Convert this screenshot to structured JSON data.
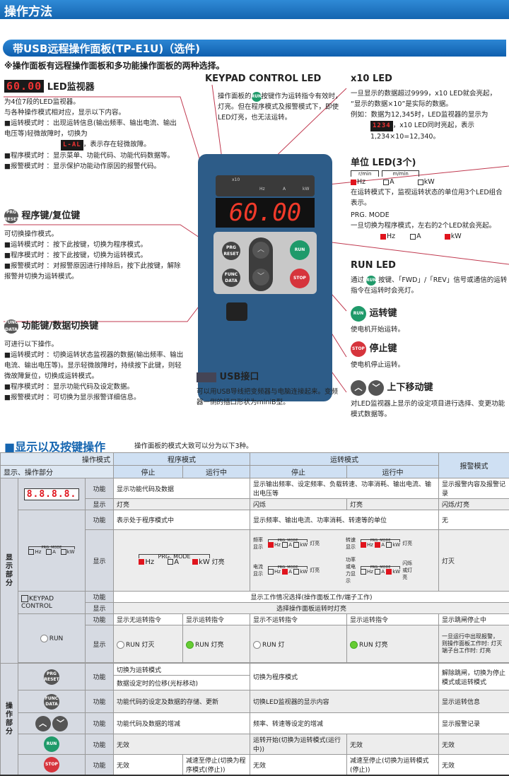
{
  "header": {
    "title": "操作方法",
    "subtitle": "带USB远程操作面板(TP-E1U)（选件)",
    "note": "※操作面板有远程操作面板和多功能操作面板的两种选择。"
  },
  "colors": {
    "brand_blue": "#1565b0",
    "led_red": "#e0141d",
    "run_green": "#1f9a6a",
    "stop_red": "#d6343c",
    "callout": "#c0394f"
  },
  "led_monitor": {
    "digits": "60.00",
    "title": "LED监视器",
    "desc": [
      "为4位7段的LED监视器。",
      "与各种操作模式相对应，显示以下内容。"
    ],
    "items": [
      {
        "k": "■运转模式时 ：",
        "v": "出现运转信息(输出频率、输出电流、输出电压等)轻微故障时，切换为"
      },
      {
        "k": "",
        "v": "，表示存在轻微故障。",
        "code": "L-AL"
      },
      {
        "k": "■程序模式时 ：",
        "v": "显示菜单、功能代码、功能代码数据等。"
      },
      {
        "k": "■报警模式时 ：",
        "v": "显示保护功能动作原因的报警代码。"
      }
    ]
  },
  "prg_key": {
    "icon": "PRG RESET",
    "title": "程序键/复位键",
    "desc": "可切换操作模式。",
    "items": [
      {
        "k": "■运转模式时 ：",
        "v": "按下此按键，切换为程序模式。"
      },
      {
        "k": "■程序模式时 ：",
        "v": "按下此按键，切换为运转模式。"
      },
      {
        "k": "■报警模式时 ：",
        "v": "对报警原因进行排除后，按下此按键，解除报警并切换为运转模式。"
      }
    ]
  },
  "func_key": {
    "icon": "FUNC DATA",
    "title": "功能键/数据切换键",
    "desc": "可进行以下操作。",
    "items": [
      {
        "k": "■运转模式时 ：",
        "v": "切换运转状态监视器的数据(输出频率、输出电流、输出电压等)。显示轻微故障时，持续按下此键，则轻微故障复位，切换成运转模式。"
      },
      {
        "k": "■程序模式时 ：",
        "v": "显示功能代码及设定数据。"
      },
      {
        "k": "■报警模式时 ：",
        "v": "可切换为显示报警详细信息。"
      }
    ]
  },
  "keypad_led": {
    "title": "KEYPAD CONTROL LED",
    "pre": "操作面板的",
    "icon": "RUN",
    "text": "按键作为运转指令有效时，灯亮。但在程序模式及报警模式下，即使LED灯亮，也无法运转。"
  },
  "usb": {
    "title": "USB接口",
    "text": "可以用USB导线把变频器与电脑连接起来。变频器一侧的插口形状为miniB型。"
  },
  "x10_led": {
    "title": "x10 LED",
    "lines": [
      "一旦显示的数据超过9999，x10 LED就会亮起，",
      "“显示的数据×10”是实际的数据。",
      "例如：数据为12,345时，LED监视器的显示为"
    ],
    "code": "1234",
    "after": "，x10 LED同时亮起，表示",
    "result": "1,234×10=12,340。"
  },
  "unit_led": {
    "title": "单位 LED(3个)",
    "rmin": "r/min",
    "mmin": "m/min",
    "units": [
      "Hz",
      "A",
      "kW"
    ],
    "lit_run": [
      true,
      false,
      false
    ],
    "text1": "在运转模式下，监视运转状态的单位用3个LED组合表示。",
    "prg": "PRG. MODE",
    "text2": "一旦切换为程序模式，左右的2个LED就会亮起。",
    "lit_prg": [
      true,
      false,
      true
    ]
  },
  "run_led": {
    "title": "RUN LED",
    "pre": "通过",
    "icon": "RUN",
    "text": "按键、「FWD」/「REV」信号或通信的运转指令在运转时会亮灯。"
  },
  "run_key": {
    "icon": "RUN",
    "title": "运转键",
    "text": "使电机开始运转。"
  },
  "stop_key": {
    "icon": "STOP",
    "title": "停止键",
    "text": "使电机停止运转。"
  },
  "updown_key": {
    "title": "上下移动键",
    "text": "对LED监视器上显示的设定项目进行选择、变更功能模式数据等。"
  },
  "panel": {
    "display": "60.00",
    "x10": "x10",
    "units": [
      "Hz",
      "A",
      "kW"
    ],
    "keys": {
      "prg": "PRG RESET",
      "func": "FUNC DATA",
      "run": "RUN",
      "stop": "STOP"
    }
  },
  "table_section": {
    "title": "■显示以及按键操作",
    "note": "操作面板的模式大致可以分为以下3种。"
  },
  "table": {
    "h_mode": "操作模式",
    "h_part": "显示、操作部分",
    "prog": "程序模式",
    "run": "运转模式",
    "alarm": "报警模式",
    "stop": "停止",
    "running": "运行中",
    "grp_display": "显示部分",
    "grp_op": "操作部分",
    "func": "功能",
    "disp": "显示",
    "led": {
      "digits": "8.8.8.8.",
      "func_prog": "显示功能代码及数据",
      "func_run": "显示输出频率、设定频率、负载转速、功率消耗、输出电流、输出电压等",
      "func_alarm": "显示报警内容及报警记录",
      "disp_prog": "灯亮",
      "disp_run_stop": "闪烁",
      "disp_run_running": "灯亮",
      "disp_alarm": "闪烁/灯亮"
    },
    "unit": {
      "prg": "PRG. MODE",
      "rmin": "r/min",
      "mmin": "m/min",
      "func_prog": "表示处于程序模式中",
      "func_run": "显示频率、输出电流、功率消耗、转速等的单位",
      "func_alarm": "无",
      "disp_prog_state": "灯亮",
      "disp_alarm": "灯灭",
      "cases": [
        {
          "label": "频率显示",
          "lit": [
            true,
            false,
            false
          ],
          "state": "灯亮"
        },
        {
          "label": "转速显示",
          "lit": [
            true,
            true,
            false
          ],
          "state": "灯亮"
        },
        {
          "label": "电流显示",
          "lit": [
            false,
            true,
            false
          ],
          "state": "灯亮"
        },
        {
          "label": "功率或电力显示",
          "lit": [
            false,
            false,
            true
          ],
          "state": "闪烁或灯亮"
        }
      ]
    },
    "keypad": {
      "label": "KEYPAD CONTROL",
      "func": "显示工作情况选择(操作面板工作/端子工作)",
      "disp": "选择操作面板运转时灯亮"
    },
    "runled": {
      "label": "RUN",
      "func": [
        "显示无运转指令",
        "显示运转指令",
        "显示不运转指令",
        "显示运转指令",
        "显示跳闸停止中"
      ],
      "disp": [
        "RUN 灯灭",
        "RUN 灯亮",
        "RUN 灯",
        "RUN 灯亮"
      ],
      "lit": [
        false,
        true,
        false,
        true
      ],
      "disp_alarm": [
        "一旦运行中出现报警，",
        "则操作面板工作时: 灯灭",
        "端子台工作时: 灯亮"
      ]
    },
    "prgkey": {
      "icon": "PRG RESET",
      "prog1": "切换为运转模式",
      "prog2": "数据设定时的位移(光标移动)",
      "run": "切换为程序模式",
      "alarm": "解除跳闸，切换为停止模式或运转模式"
    },
    "funckey": {
      "icon": "FUNC DATA",
      "prog": "功能代码的设定及数据的存储、更新",
      "run": "切换LED监视器的显示内容",
      "alarm": "显示运转信息"
    },
    "arrows": {
      "prog": "功能代码及数据的增减",
      "run": "频率、转速等设定的增减",
      "alarm": "显示报警记录"
    },
    "runkey": {
      "icon": "RUN",
      "prog": "无效",
      "run_stop": "运转开始(切换为运转模式(运行中))",
      "run_running": "无效",
      "alarm": "无效"
    },
    "stopkey": {
      "icon": "STOP",
      "prog_stop": "无效",
      "prog_running": "减速至停止(切换为程序模式(停止))",
      "run_stop": "无效",
      "run_running": "减速至停止(切换为运转模式(停止))",
      "alarm": "无效"
    }
  }
}
